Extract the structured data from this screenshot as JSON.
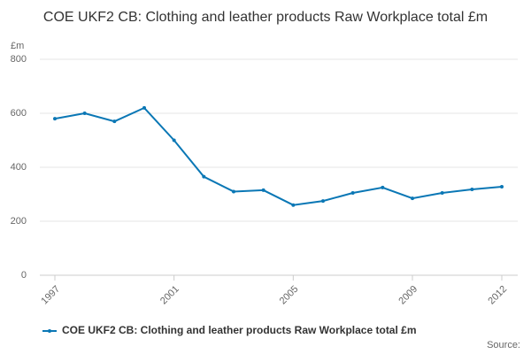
{
  "chart_data": {
    "type": "line",
    "title": "COE UKF2 CB: Clothing and leather products Raw Workplace total £m",
    "y_label": "£m",
    "source": "Source:",
    "x": [
      1997,
      1998,
      1999,
      2000,
      2001,
      2002,
      2003,
      2004,
      2005,
      2006,
      2007,
      2008,
      2009,
      2010,
      2011,
      2012
    ],
    "series": [
      {
        "name": "COE UKF2 CB: Clothing and leather products Raw Workplace total £m",
        "color": "#0a77b5",
        "values": [
          580,
          600,
          570,
          620,
          500,
          365,
          310,
          315,
          260,
          275,
          305,
          325,
          285,
          305,
          318,
          328
        ]
      }
    ],
    "xlim": [
      1997,
      2012
    ],
    "xticks": [
      1997,
      2001,
      2005,
      2009,
      2012
    ],
    "ylim": [
      0,
      800
    ],
    "yticks": [
      0,
      200,
      400,
      600,
      800
    ],
    "grid": true
  }
}
